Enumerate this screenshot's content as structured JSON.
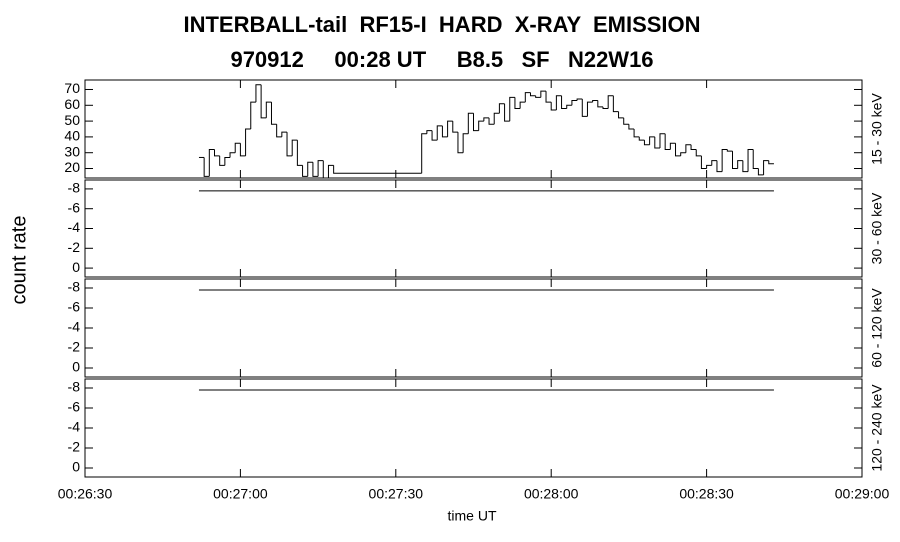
{
  "chart_data": [
    {
      "type": "step",
      "title": "INTERBALL-tail  RF15-I  HARD  X-RAY  EMISSION",
      "subtitle": "970912     00:28 UT     B8.5   SF   N22W16",
      "ylabel": "count rate",
      "channel": "15 - 30 keV",
      "xlim": [
        "00:26:30",
        "00:29:00"
      ],
      "ylim": [
        14,
        76
      ],
      "yticks": [
        20,
        30,
        40,
        50,
        60,
        70
      ],
      "series": [
        {
          "color": "#000000",
          "x": [
            "00:26:52",
            "00:26:53",
            "00:26:54",
            "00:26:55",
            "00:26:56",
            "00:26:57",
            "00:26:58",
            "00:26:59",
            "00:27:00",
            "00:27:01",
            "00:27:02",
            "00:27:03",
            "00:27:04",
            "00:27:05",
            "00:27:06",
            "00:27:07",
            "00:27:08",
            "00:27:09",
            "00:27:10",
            "00:27:11",
            "00:27:12",
            "00:27:13",
            "00:27:14",
            "00:27:15",
            "00:27:16",
            "00:27:17",
            "00:27:18",
            "00:27:35",
            "00:27:36",
            "00:27:37",
            "00:27:38",
            "00:27:39",
            "00:27:40",
            "00:27:41",
            "00:27:42",
            "00:27:43",
            "00:27:44",
            "00:27:45",
            "00:27:46",
            "00:27:47",
            "00:27:48",
            "00:27:49",
            "00:27:50",
            "00:27:51",
            "00:27:52",
            "00:27:53",
            "00:27:54",
            "00:27:55",
            "00:27:56",
            "00:27:57",
            "00:27:58",
            "00:27:59",
            "00:28:00",
            "00:28:01",
            "00:28:02",
            "00:28:03",
            "00:28:04",
            "00:28:05",
            "00:28:06",
            "00:28:07",
            "00:28:08",
            "00:28:09",
            "00:28:10",
            "00:28:11",
            "00:28:12",
            "00:28:13",
            "00:28:14",
            "00:28:15",
            "00:28:16",
            "00:28:17",
            "00:28:18",
            "00:28:19",
            "00:28:20",
            "00:28:21",
            "00:28:22",
            "00:28:23",
            "00:28:24",
            "00:28:25",
            "00:28:26",
            "00:28:27",
            "00:28:28",
            "00:28:29",
            "00:28:30",
            "00:28:31",
            "00:28:32",
            "00:28:33",
            "00:28:34",
            "00:28:35",
            "00:28:36",
            "00:28:37",
            "00:28:38",
            "00:28:39",
            "00:28:40",
            "00:28:41",
            "00:28:42"
          ],
          "values": [
            27,
            15,
            32,
            28,
            22,
            27,
            30,
            36,
            28,
            45,
            62,
            73,
            52,
            62,
            48,
            40,
            43,
            28,
            38,
            22,
            15,
            24,
            15,
            25,
            14,
            22,
            17,
            42,
            44,
            38,
            47,
            40,
            50,
            43,
            30,
            42,
            55,
            44,
            50,
            52,
            48,
            55,
            61,
            50,
            65,
            58,
            62,
            68,
            66,
            65,
            69,
            62,
            57,
            66,
            58,
            60,
            63,
            64,
            53,
            62,
            63,
            59,
            58,
            66,
            56,
            52,
            48,
            45,
            40,
            38,
            35,
            40,
            33,
            42,
            32,
            36,
            28,
            30,
            35,
            32,
            28,
            20,
            22,
            25,
            18,
            32,
            31,
            20,
            25,
            18,
            32,
            20,
            16,
            25,
            23
          ]
        }
      ]
    },
    {
      "type": "line",
      "channel": "30 - 60 keV",
      "xlim": [
        "00:26:30",
        "00:29:00"
      ],
      "ylim": [
        0.9,
        -8.9
      ],
      "yticks": [
        -8,
        -6,
        -4,
        -2,
        0
      ],
      "series": [
        {
          "color": "#000000",
          "x": [
            "00:26:52",
            "00:28:43"
          ],
          "values": [
            -7.8,
            -7.8
          ]
        }
      ]
    },
    {
      "type": "line",
      "channel": "60 - 120 keV",
      "xlim": [
        "00:26:30",
        "00:29:00"
      ],
      "ylim": [
        0.9,
        -8.9
      ],
      "yticks": [
        -8,
        -6,
        -4,
        -2,
        0
      ],
      "series": [
        {
          "color": "#000000",
          "x": [
            "00:26:52",
            "00:28:43"
          ],
          "values": [
            -7.8,
            -7.8
          ]
        }
      ]
    },
    {
      "type": "line",
      "channel": "120 - 240 keV",
      "xlabel": "time UT",
      "xlim": [
        "00:26:30",
        "00:29:00"
      ],
      "ylim": [
        0.9,
        -8.9
      ],
      "yticks": [
        -8,
        -6,
        -4,
        -2,
        0
      ],
      "xticks": [
        "00:26:30",
        "00:27:00",
        "00:27:30",
        "00:28:00",
        "00:28:30",
        "00:29:00"
      ],
      "series": [
        {
          "color": "#000000",
          "x": [
            "00:26:52",
            "00:28:43"
          ],
          "values": [
            -7.8,
            -7.8
          ]
        }
      ]
    }
  ]
}
